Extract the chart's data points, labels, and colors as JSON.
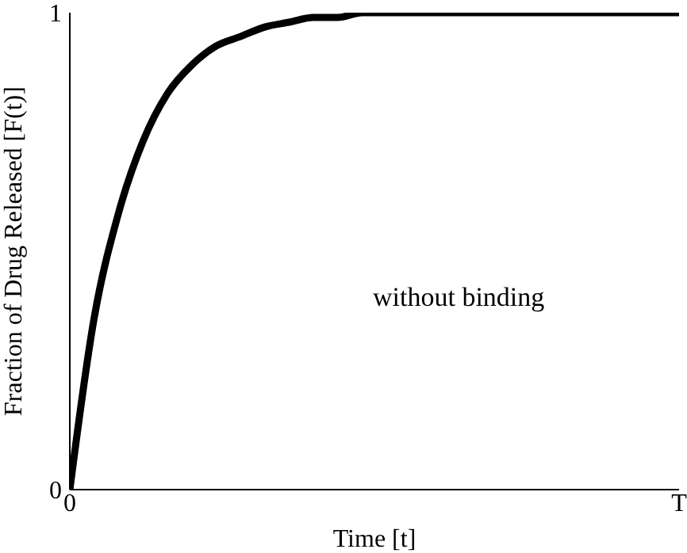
{
  "chart_data": {
    "type": "line",
    "xlabel": "Time [t]",
    "ylabel": "Fraction of Drug Released [F(t)]",
    "categories": [
      "0",
      null,
      null,
      null,
      null,
      null,
      null,
      null,
      null,
      null,
      null,
      null,
      null,
      null,
      null,
      null,
      null,
      null,
      null,
      null,
      null,
      null,
      null,
      null,
      null,
      "T"
    ],
    "series": [
      {
        "color": "#000000",
        "values": [
          0,
          0.36,
          0.58,
          0.73,
          0.83,
          0.89,
          0.93,
          0.95,
          0.97,
          0.98,
          0.99,
          0.99,
          1.0,
          1.0,
          1.0,
          1.0,
          1.0,
          1.0,
          1.0,
          1.0,
          1.0,
          1.0,
          1.0,
          1.0,
          1.0,
          1.0
        ]
      }
    ],
    "ylim": [
      0,
      1
    ],
    "yticks": [
      0,
      1
    ],
    "annotations": [
      "without binding"
    ],
    "marker": "none",
    "line_style": "solid"
  }
}
